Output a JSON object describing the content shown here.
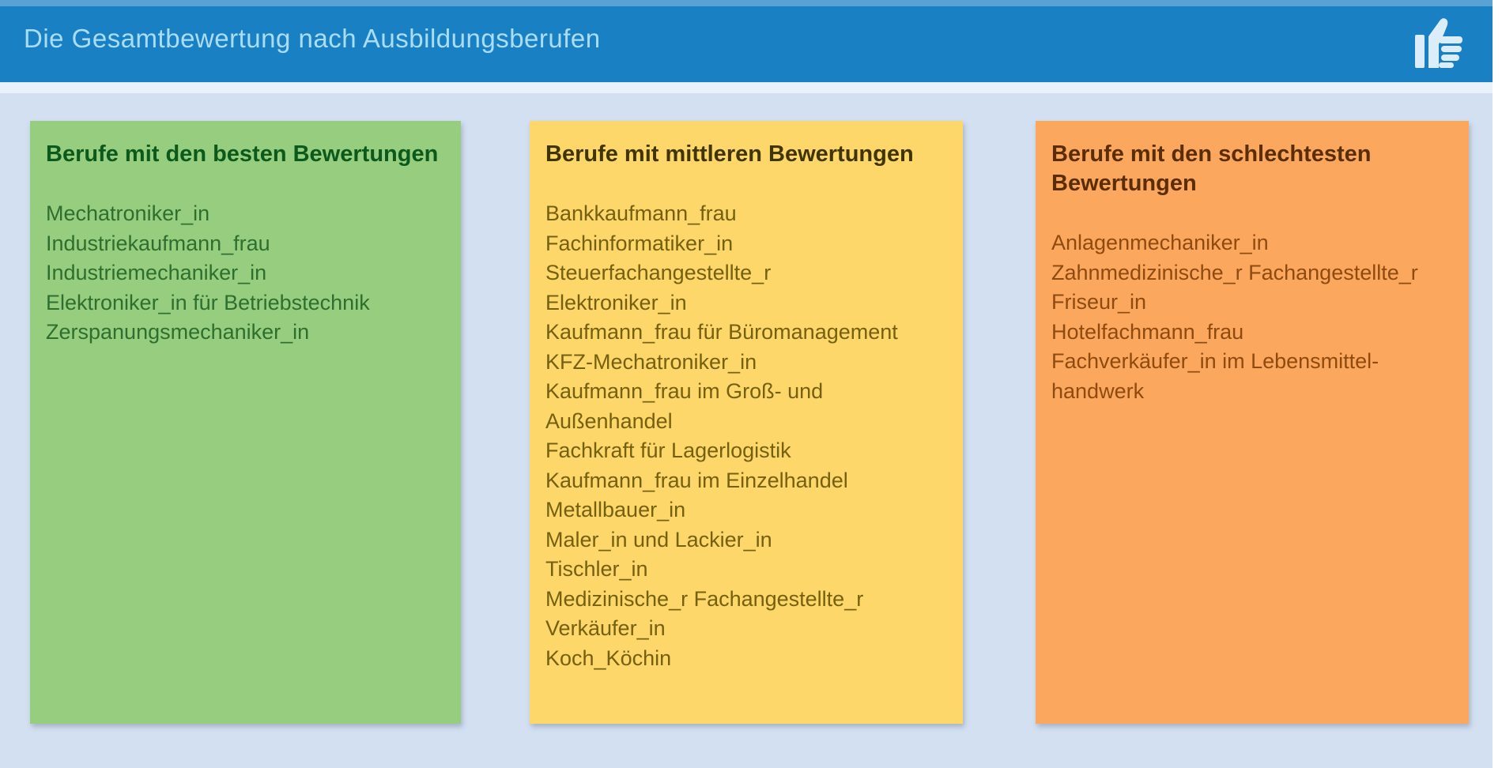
{
  "header": {
    "title": "Die Gesamtbewertung nach Ausbildungsberufen",
    "icon": "thumbs-up-icon",
    "bar_color": "#1a80c4",
    "title_color": "#a9ddf4",
    "icon_color": "#dcedfa"
  },
  "background_color": "#d2e0f1",
  "columns": [
    {
      "heading": "Berufe mit den besten Bewertungen",
      "bg": "#96cd7f",
      "heading_color": "#0c591c",
      "text_color": "#2e6f2f",
      "items": [
        "Mechatroniker_in",
        "Industriekaufmann_frau",
        "Industriemechaniker_in",
        "Elektroniker_in für Betriebstechnik",
        "Zerspanungsmechaniker_in"
      ]
    },
    {
      "heading": "Berufe mit mittleren Bewertungen",
      "bg": "#fdd76a",
      "heading_color": "#403400",
      "text_color": "#75600f",
      "items": [
        "Bankkaufmann_frau",
        "Fachinformatiker_in",
        "Steuerfachangestellte_r",
        "Elektroniker_in",
        "Kaufmann_frau für Büromanagement",
        "KFZ-Mechatroniker_in",
        "Kaufmann_frau im Groß- und\nAußenhandel",
        "Fachkraft für Lagerlogistik",
        "Kaufmann_frau im Einzelhandel",
        "Metallbauer_in",
        "Maler_in und Lackier_in",
        "Tischler_in",
        "Medizinische_r Fachangestellte_r",
        "Verkäufer_in",
        "Koch_Köchin"
      ]
    },
    {
      "heading": "Berufe mit den schlechtesten\nBewertungen",
      "bg": "#fba85e",
      "heading_color": "#5a2d05",
      "text_color": "#8f4a10",
      "items": [
        "Anlagenmechaniker_in",
        "Zahnmedizinische_r Fachangestellte_r",
        "Friseur_in",
        "Hotelfachmann_frau",
        "Fachverkäufer_in im Lebensmittel-\nhandwerk"
      ]
    }
  ]
}
